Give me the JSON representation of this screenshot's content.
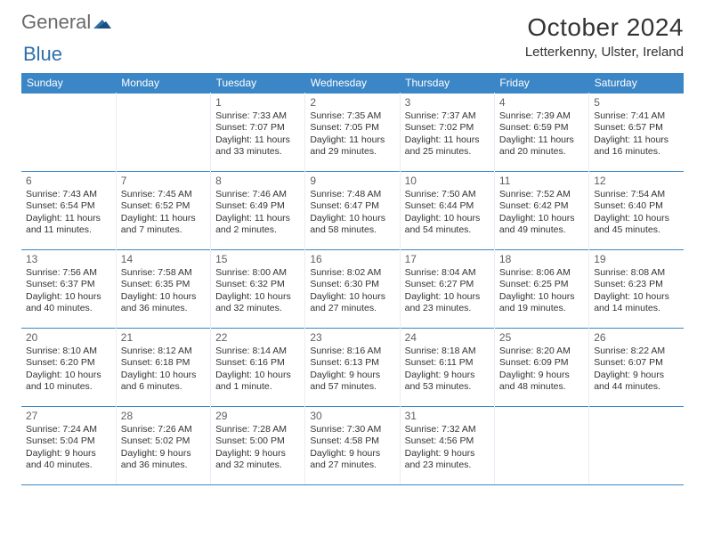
{
  "logo": {
    "word1": "General",
    "word2": "Blue"
  },
  "title": {
    "month_year": "October 2024",
    "location": "Letterkenny, Ulster, Ireland"
  },
  "header_bg": "#3b86c6",
  "text_color": "#333333",
  "day_headers": [
    "Sunday",
    "Monday",
    "Tuesday",
    "Wednesday",
    "Thursday",
    "Friday",
    "Saturday"
  ],
  "weeks": [
    [
      null,
      null,
      {
        "n": "1",
        "sr": "Sunrise: 7:33 AM",
        "ss": "Sunset: 7:07 PM",
        "dl": "Daylight: 11 hours and 33 minutes."
      },
      {
        "n": "2",
        "sr": "Sunrise: 7:35 AM",
        "ss": "Sunset: 7:05 PM",
        "dl": "Daylight: 11 hours and 29 minutes."
      },
      {
        "n": "3",
        "sr": "Sunrise: 7:37 AM",
        "ss": "Sunset: 7:02 PM",
        "dl": "Daylight: 11 hours and 25 minutes."
      },
      {
        "n": "4",
        "sr": "Sunrise: 7:39 AM",
        "ss": "Sunset: 6:59 PM",
        "dl": "Daylight: 11 hours and 20 minutes."
      },
      {
        "n": "5",
        "sr": "Sunrise: 7:41 AM",
        "ss": "Sunset: 6:57 PM",
        "dl": "Daylight: 11 hours and 16 minutes."
      }
    ],
    [
      {
        "n": "6",
        "sr": "Sunrise: 7:43 AM",
        "ss": "Sunset: 6:54 PM",
        "dl": "Daylight: 11 hours and 11 minutes."
      },
      {
        "n": "7",
        "sr": "Sunrise: 7:45 AM",
        "ss": "Sunset: 6:52 PM",
        "dl": "Daylight: 11 hours and 7 minutes."
      },
      {
        "n": "8",
        "sr": "Sunrise: 7:46 AM",
        "ss": "Sunset: 6:49 PM",
        "dl": "Daylight: 11 hours and 2 minutes."
      },
      {
        "n": "9",
        "sr": "Sunrise: 7:48 AM",
        "ss": "Sunset: 6:47 PM",
        "dl": "Daylight: 10 hours and 58 minutes."
      },
      {
        "n": "10",
        "sr": "Sunrise: 7:50 AM",
        "ss": "Sunset: 6:44 PM",
        "dl": "Daylight: 10 hours and 54 minutes."
      },
      {
        "n": "11",
        "sr": "Sunrise: 7:52 AM",
        "ss": "Sunset: 6:42 PM",
        "dl": "Daylight: 10 hours and 49 minutes."
      },
      {
        "n": "12",
        "sr": "Sunrise: 7:54 AM",
        "ss": "Sunset: 6:40 PM",
        "dl": "Daylight: 10 hours and 45 minutes."
      }
    ],
    [
      {
        "n": "13",
        "sr": "Sunrise: 7:56 AM",
        "ss": "Sunset: 6:37 PM",
        "dl": "Daylight: 10 hours and 40 minutes."
      },
      {
        "n": "14",
        "sr": "Sunrise: 7:58 AM",
        "ss": "Sunset: 6:35 PM",
        "dl": "Daylight: 10 hours and 36 minutes."
      },
      {
        "n": "15",
        "sr": "Sunrise: 8:00 AM",
        "ss": "Sunset: 6:32 PM",
        "dl": "Daylight: 10 hours and 32 minutes."
      },
      {
        "n": "16",
        "sr": "Sunrise: 8:02 AM",
        "ss": "Sunset: 6:30 PM",
        "dl": "Daylight: 10 hours and 27 minutes."
      },
      {
        "n": "17",
        "sr": "Sunrise: 8:04 AM",
        "ss": "Sunset: 6:27 PM",
        "dl": "Daylight: 10 hours and 23 minutes."
      },
      {
        "n": "18",
        "sr": "Sunrise: 8:06 AM",
        "ss": "Sunset: 6:25 PM",
        "dl": "Daylight: 10 hours and 19 minutes."
      },
      {
        "n": "19",
        "sr": "Sunrise: 8:08 AM",
        "ss": "Sunset: 6:23 PM",
        "dl": "Daylight: 10 hours and 14 minutes."
      }
    ],
    [
      {
        "n": "20",
        "sr": "Sunrise: 8:10 AM",
        "ss": "Sunset: 6:20 PM",
        "dl": "Daylight: 10 hours and 10 minutes."
      },
      {
        "n": "21",
        "sr": "Sunrise: 8:12 AM",
        "ss": "Sunset: 6:18 PM",
        "dl": "Daylight: 10 hours and 6 minutes."
      },
      {
        "n": "22",
        "sr": "Sunrise: 8:14 AM",
        "ss": "Sunset: 6:16 PM",
        "dl": "Daylight: 10 hours and 1 minute."
      },
      {
        "n": "23",
        "sr": "Sunrise: 8:16 AM",
        "ss": "Sunset: 6:13 PM",
        "dl": "Daylight: 9 hours and 57 minutes."
      },
      {
        "n": "24",
        "sr": "Sunrise: 8:18 AM",
        "ss": "Sunset: 6:11 PM",
        "dl": "Daylight: 9 hours and 53 minutes."
      },
      {
        "n": "25",
        "sr": "Sunrise: 8:20 AM",
        "ss": "Sunset: 6:09 PM",
        "dl": "Daylight: 9 hours and 48 minutes."
      },
      {
        "n": "26",
        "sr": "Sunrise: 8:22 AM",
        "ss": "Sunset: 6:07 PM",
        "dl": "Daylight: 9 hours and 44 minutes."
      }
    ],
    [
      {
        "n": "27",
        "sr": "Sunrise: 7:24 AM",
        "ss": "Sunset: 5:04 PM",
        "dl": "Daylight: 9 hours and 40 minutes."
      },
      {
        "n": "28",
        "sr": "Sunrise: 7:26 AM",
        "ss": "Sunset: 5:02 PM",
        "dl": "Daylight: 9 hours and 36 minutes."
      },
      {
        "n": "29",
        "sr": "Sunrise: 7:28 AM",
        "ss": "Sunset: 5:00 PM",
        "dl": "Daylight: 9 hours and 32 minutes."
      },
      {
        "n": "30",
        "sr": "Sunrise: 7:30 AM",
        "ss": "Sunset: 4:58 PM",
        "dl": "Daylight: 9 hours and 27 minutes."
      },
      {
        "n": "31",
        "sr": "Sunrise: 7:32 AM",
        "ss": "Sunset: 4:56 PM",
        "dl": "Daylight: 9 hours and 23 minutes."
      },
      null,
      null
    ]
  ]
}
